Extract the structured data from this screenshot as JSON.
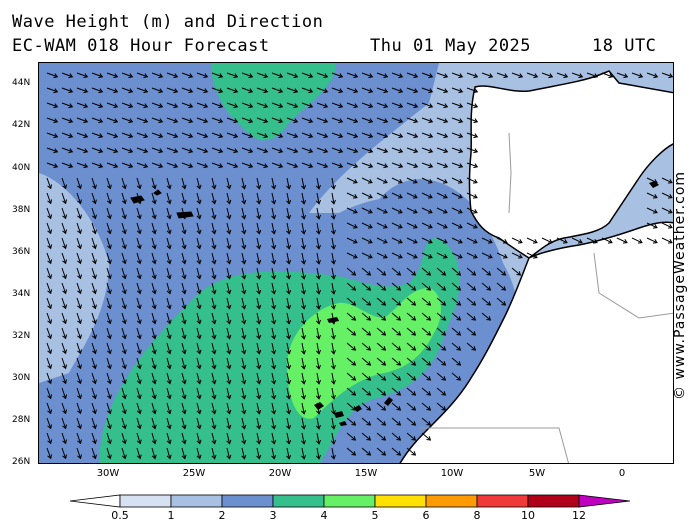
{
  "header": {
    "line1": "Wave Height (m) and Direction",
    "line2_left": "EC-WAM 018 Hour Forecast",
    "line2_mid": "Thu 01 May 2025",
    "line2_right": "18 UTC"
  },
  "credit": "© www.PassageWeather.com",
  "axes": {
    "lat_labels": [
      "44N",
      "42N",
      "40N",
      "38N",
      "36N",
      "34N",
      "32N",
      "30N",
      "28N",
      "26N"
    ],
    "lon_labels": [
      "30W",
      "25W",
      "20W",
      "15W",
      "10W",
      "5W",
      "0"
    ]
  },
  "legend": {
    "labels": [
      "0.5",
      "1",
      "2",
      "3",
      "4",
      "5",
      "6",
      "8",
      "10",
      "12"
    ],
    "colors": [
      "#ffffff",
      "#d6e1f2",
      "#a8c0e2",
      "#6b8fcf",
      "#35bf8c",
      "#66f066",
      "#ffe000",
      "#ff9a00",
      "#f03a3a",
      "#b0001a",
      "#c000c0"
    ]
  },
  "map": {
    "region": "Eastern North Atlantic, Iberia and NW Africa",
    "lat_range": [
      "26N",
      "45N"
    ],
    "lon_range": [
      "34W",
      "3E"
    ],
    "land_color": "#ffffff",
    "swell_colors": {
      "lt_0_5_to_1": "#d6e1f2",
      "1_to_2": "#a8c0e2",
      "2_to_3": "#6b8fcf",
      "3_to_4": "#35bf8c",
      "4_to_5": "#66f066"
    }
  }
}
